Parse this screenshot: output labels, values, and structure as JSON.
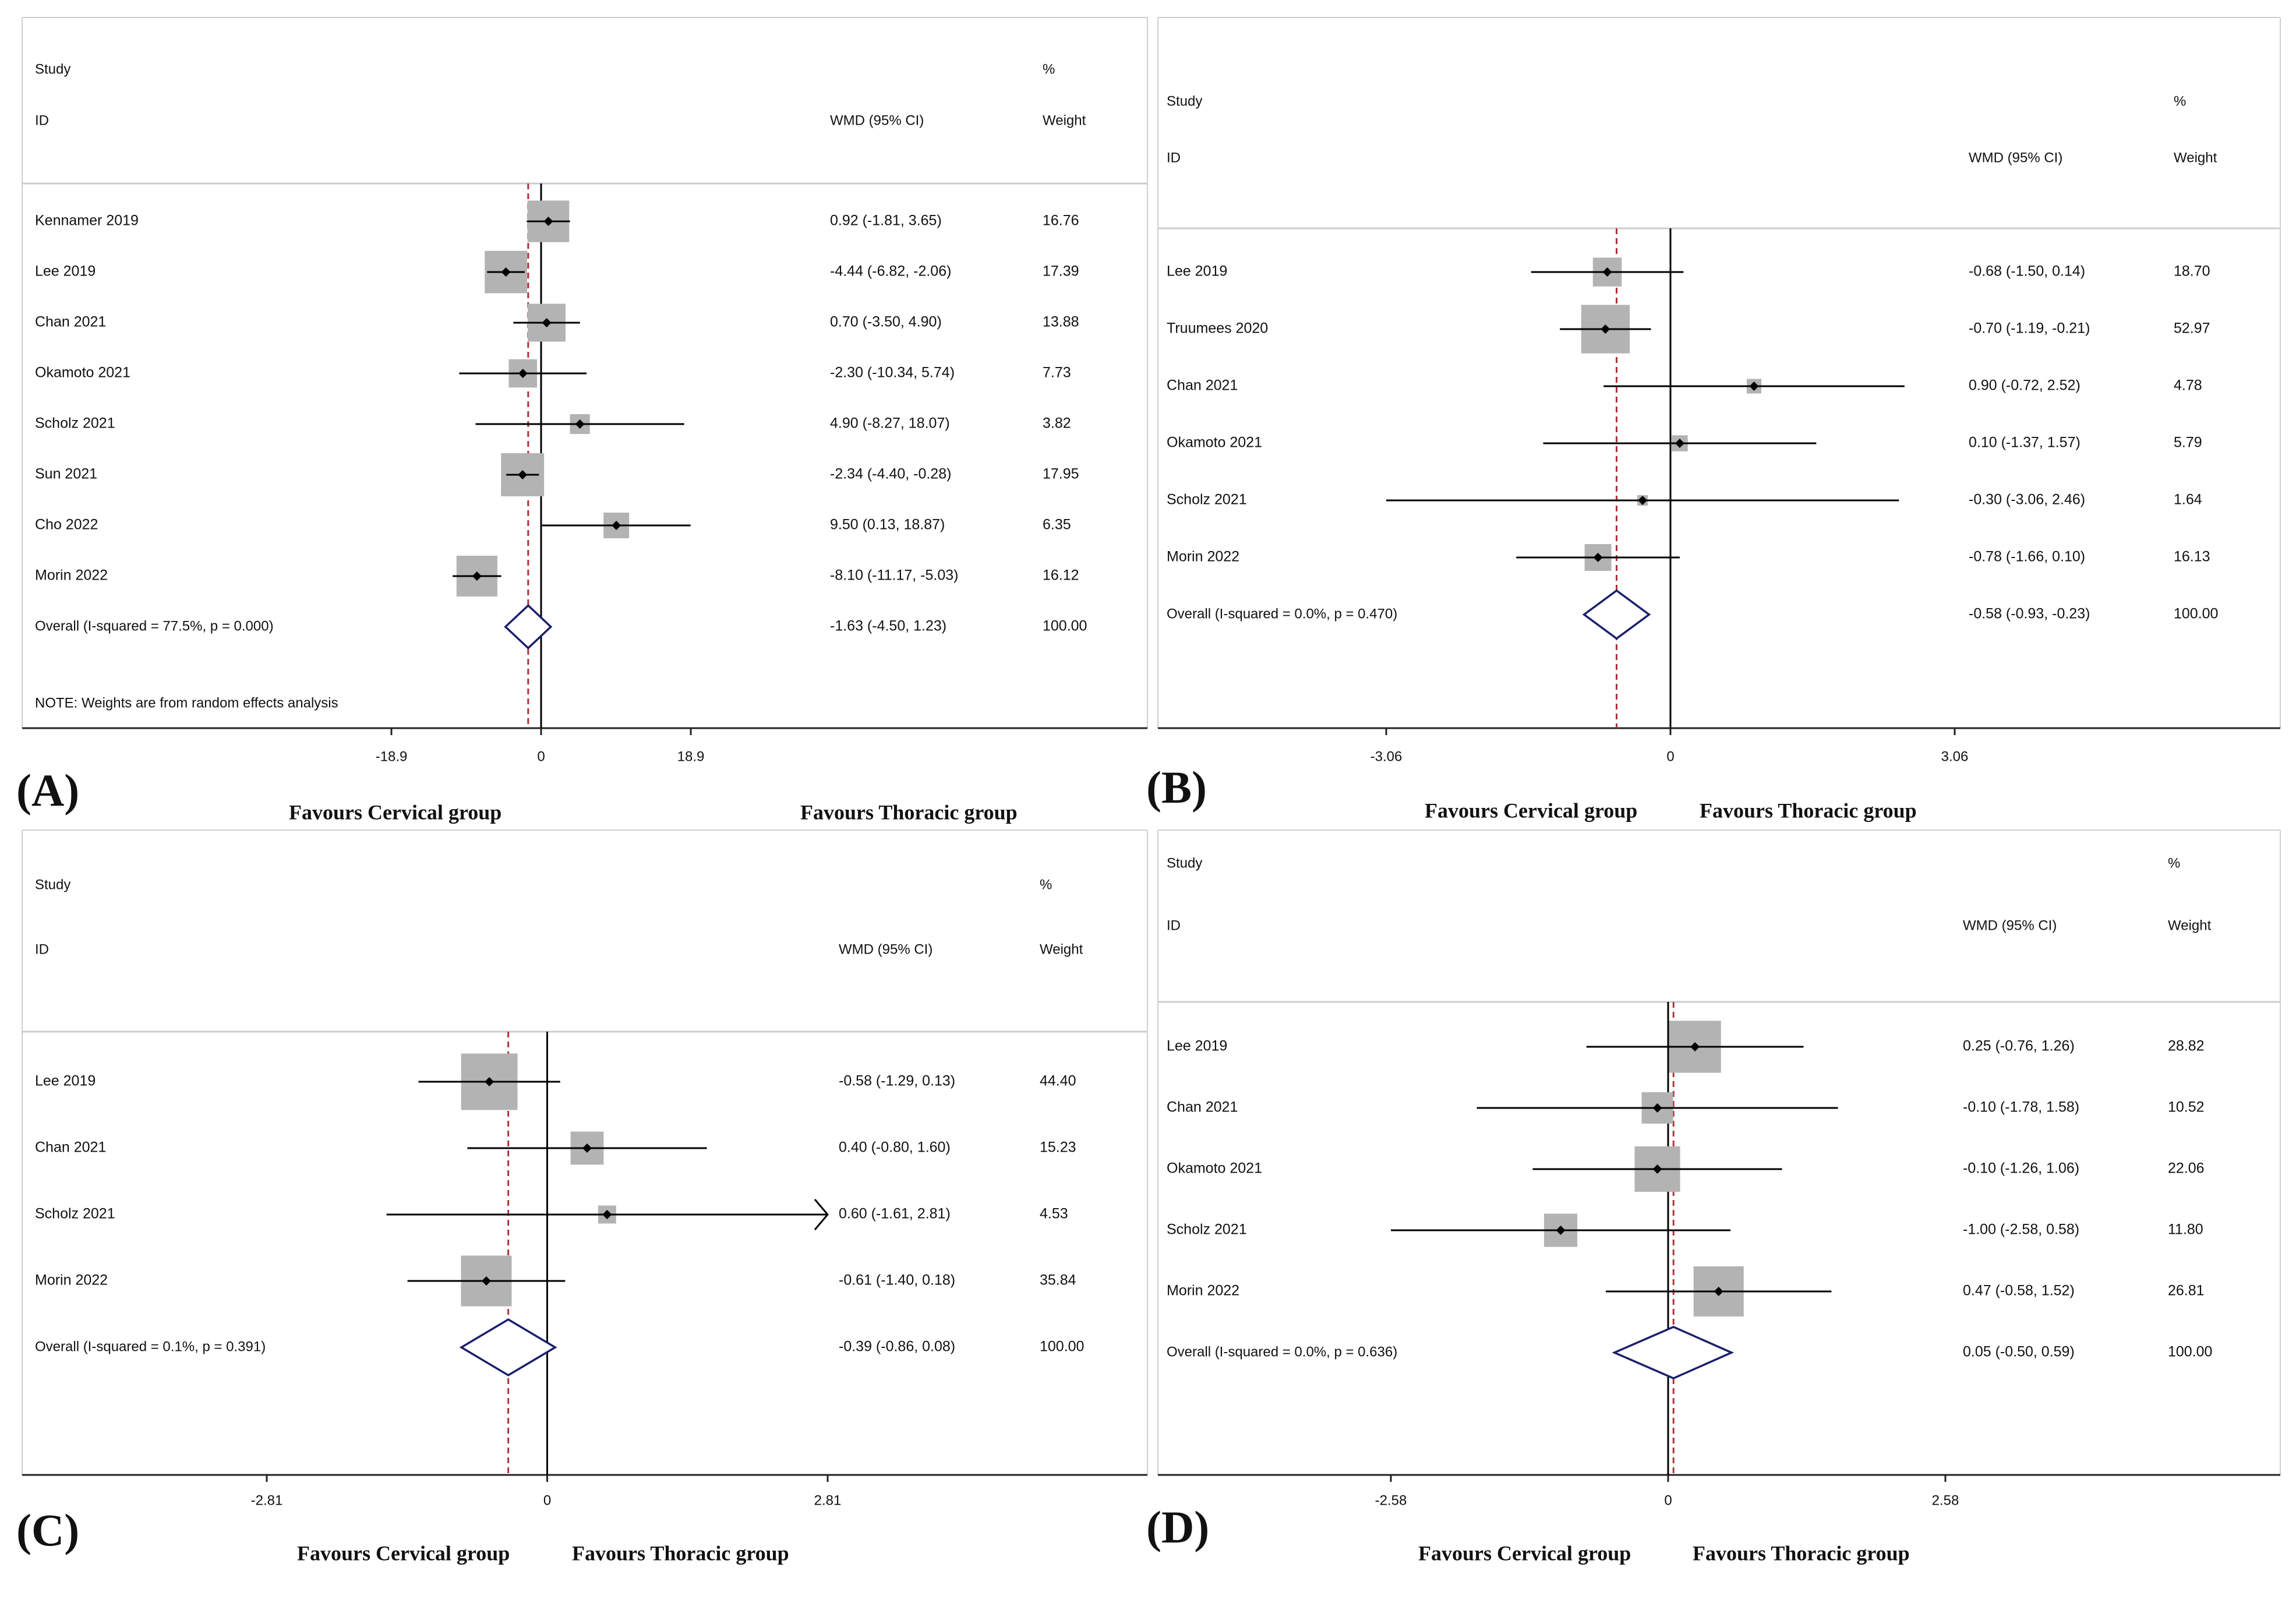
{
  "figure": {
    "colors": {
      "marker": "#000000",
      "ci_line": "#000000",
      "box": "#b3b3b3",
      "diamond": "#1a1f6b",
      "null_line": "#000000",
      "pooled_line": "#b0303a",
      "text": "#111111"
    }
  },
  "chart_data": [
    {
      "type": "forest",
      "panel_label": "(A)",
      "header": {
        "study_line1": "Study",
        "study_line2": "ID",
        "effect": "WMD (95% CI)",
        "weight_line1": "%",
        "weight_line2": "Weight"
      },
      "xlim": [
        -18.9,
        18.9
      ],
      "ticks": [
        "-18.9",
        "0",
        "18.9"
      ],
      "tick_values": [
        -18.9,
        0,
        18.9
      ],
      "favours_left": "Favours Cervical group",
      "favours_right": "Favours Thoracic group",
      "studies": [
        {
          "label": "Kennamer 2019",
          "est": 0.92,
          "lo": -1.81,
          "hi": 3.65,
          "ci_text": "0.92 (-1.81, 3.65)",
          "weight": 16.76,
          "weight_text": "16.76"
        },
        {
          "label": "Lee 2019",
          "est": -4.44,
          "lo": -6.82,
          "hi": -2.06,
          "ci_text": "-4.44 (-6.82, -2.06)",
          "weight": 17.39,
          "weight_text": "17.39"
        },
        {
          "label": "Chan 2021",
          "est": 0.7,
          "lo": -3.5,
          "hi": 4.9,
          "ci_text": "0.70 (-3.50, 4.90)",
          "weight": 13.88,
          "weight_text": "13.88"
        },
        {
          "label": "Okamoto 2021",
          "est": -2.3,
          "lo": -10.34,
          "hi": 5.74,
          "ci_text": "-2.30 (-10.34, 5.74)",
          "weight": 7.73,
          "weight_text": "7.73"
        },
        {
          "label": "Scholz 2021",
          "est": 4.9,
          "lo": -8.27,
          "hi": 18.07,
          "ci_text": "4.90 (-8.27, 18.07)",
          "weight": 3.82,
          "weight_text": "3.82"
        },
        {
          "label": "Sun 2021",
          "est": -2.34,
          "lo": -4.4,
          "hi": -0.28,
          "ci_text": "-2.34 (-4.40, -0.28)",
          "weight": 17.95,
          "weight_text": "17.95"
        },
        {
          "label": "Cho 2022",
          "est": 9.5,
          "lo": 0.13,
          "hi": 18.87,
          "ci_text": "9.50 (0.13, 18.87)",
          "weight": 6.35,
          "weight_text": "6.35"
        },
        {
          "label": "Morin 2022",
          "est": -8.1,
          "lo": -11.17,
          "hi": -5.03,
          "ci_text": "-8.10 (-11.17, -5.03)",
          "weight": 16.12,
          "weight_text": "16.12"
        }
      ],
      "overall": {
        "label": "Overall  (I-squared = 77.5%, p = 0.000)",
        "est": -1.63,
        "lo": -4.5,
        "hi": 1.23,
        "ci_text": "-1.63 (-4.50, 1.23)",
        "weight_text": "100.00"
      },
      "note": "NOTE: Weights are from random effects analysis"
    },
    {
      "type": "forest",
      "panel_label": "(B)",
      "header": {
        "study_line1": "Study",
        "study_line2": "ID",
        "effect": "WMD (95% CI)",
        "weight_line1": "%",
        "weight_line2": "Weight"
      },
      "xlim": [
        -3.06,
        3.06
      ],
      "ticks": [
        "-3.06",
        "0",
        "3.06"
      ],
      "tick_values": [
        -3.06,
        0,
        3.06
      ],
      "favours_left": "Favours Cervical group",
      "favours_right": "Favours Thoracic group",
      "studies": [
        {
          "label": "Lee 2019",
          "est": -0.68,
          "lo": -1.5,
          "hi": 0.14,
          "ci_text": "-0.68 (-1.50, 0.14)",
          "weight": 18.7,
          "weight_text": "18.70"
        },
        {
          "label": "Truumees 2020",
          "est": -0.7,
          "lo": -1.19,
          "hi": -0.21,
          "ci_text": "-0.70 (-1.19, -0.21)",
          "weight": 52.97,
          "weight_text": "52.97"
        },
        {
          "label": "Chan 2021",
          "est": 0.9,
          "lo": -0.72,
          "hi": 2.52,
          "ci_text": "0.90 (-0.72, 2.52)",
          "weight": 4.78,
          "weight_text": "4.78"
        },
        {
          "label": "Okamoto 2021",
          "est": 0.1,
          "lo": -1.37,
          "hi": 1.57,
          "ci_text": "0.10 (-1.37, 1.57)",
          "weight": 5.79,
          "weight_text": "5.79"
        },
        {
          "label": "Scholz 2021",
          "est": -0.3,
          "lo": -3.06,
          "hi": 2.46,
          "ci_text": "-0.30 (-3.06, 2.46)",
          "weight": 1.64,
          "weight_text": "1.64"
        },
        {
          "label": "Morin 2022",
          "est": -0.78,
          "lo": -1.66,
          "hi": 0.1,
          "ci_text": "-0.78 (-1.66, 0.10)",
          "weight": 16.13,
          "weight_text": "16.13"
        }
      ],
      "overall": {
        "label": "Overall  (I-squared = 0.0%, p = 0.470)",
        "est": -0.58,
        "lo": -0.93,
        "hi": -0.23,
        "ci_text": "-0.58 (-0.93, -0.23)",
        "weight_text": "100.00"
      },
      "note": ""
    },
    {
      "type": "forest",
      "panel_label": "(C)",
      "header": {
        "study_line1": "Study",
        "study_line2": "ID",
        "effect": "WMD (95% CI)",
        "weight_line1": "%",
        "weight_line2": "Weight"
      },
      "xlim": [
        -2.81,
        2.81
      ],
      "ticks": [
        "-2.81",
        "0",
        "2.81"
      ],
      "tick_values": [
        -2.81,
        0,
        2.81
      ],
      "favours_left": "Favours Cervical group",
      "favours_right": "Favours Thoracic group",
      "studies": [
        {
          "label": "Lee 2019",
          "est": -0.58,
          "lo": -1.29,
          "hi": 0.13,
          "ci_text": "-0.58 (-1.29, 0.13)",
          "weight": 44.4,
          "weight_text": "44.40"
        },
        {
          "label": "Chan 2021",
          "est": 0.4,
          "lo": -0.8,
          "hi": 1.6,
          "ci_text": "0.40 (-0.80, 1.60)",
          "weight": 15.23,
          "weight_text": "15.23"
        },
        {
          "label": "Scholz 2021",
          "est": 0.6,
          "lo": -1.61,
          "hi": 2.81,
          "ci_text": "0.60 (-1.61, 2.81)",
          "weight": 4.53,
          "weight_text": "4.53",
          "arrow_right": true
        },
        {
          "label": "Morin 2022",
          "est": -0.61,
          "lo": -1.4,
          "hi": 0.18,
          "ci_text": "-0.61 (-1.40, 0.18)",
          "weight": 35.84,
          "weight_text": "35.84"
        }
      ],
      "overall": {
        "label": "Overall  (I-squared = 0.1%, p = 0.391)",
        "est": -0.39,
        "lo": -0.86,
        "hi": 0.08,
        "ci_text": "-0.39 (-0.86, 0.08)",
        "weight_text": "100.00"
      },
      "note": ""
    },
    {
      "type": "forest",
      "panel_label": "(D)",
      "header": {
        "study_line1": "Study",
        "study_line2": "ID",
        "effect": "WMD (95% CI)",
        "weight_line1": "%",
        "weight_line2": "Weight"
      },
      "xlim": [
        -2.58,
        2.58
      ],
      "ticks": [
        "-2.58",
        "0",
        "2.58"
      ],
      "tick_values": [
        -2.58,
        0,
        2.58
      ],
      "favours_left": "Favours Cervical group",
      "favours_right": "Favours Thoracic group",
      "studies": [
        {
          "label": "Lee 2019",
          "est": 0.25,
          "lo": -0.76,
          "hi": 1.26,
          "ci_text": "0.25 (-0.76, 1.26)",
          "weight": 28.82,
          "weight_text": "28.82"
        },
        {
          "label": "Chan 2021",
          "est": -0.1,
          "lo": -1.78,
          "hi": 1.58,
          "ci_text": "-0.10 (-1.78, 1.58)",
          "weight": 10.52,
          "weight_text": "10.52"
        },
        {
          "label": "Okamoto 2021",
          "est": -0.1,
          "lo": -1.26,
          "hi": 1.06,
          "ci_text": "-0.10 (-1.26, 1.06)",
          "weight": 22.06,
          "weight_text": "22.06"
        },
        {
          "label": "Scholz 2021",
          "est": -1.0,
          "lo": -2.58,
          "hi": 0.58,
          "ci_text": "-1.00 (-2.58, 0.58)",
          "weight": 11.8,
          "weight_text": "11.80"
        },
        {
          "label": "Morin 2022",
          "est": 0.47,
          "lo": -0.58,
          "hi": 1.52,
          "ci_text": "0.47 (-0.58, 1.52)",
          "weight": 26.81,
          "weight_text": "26.81"
        }
      ],
      "overall": {
        "label": "Overall  (I-squared = 0.0%, p = 0.636)",
        "est": 0.05,
        "lo": -0.5,
        "hi": 0.59,
        "ci_text": "0.05 (-0.50, 0.59)",
        "weight_text": "100.00"
      },
      "note": ""
    }
  ]
}
